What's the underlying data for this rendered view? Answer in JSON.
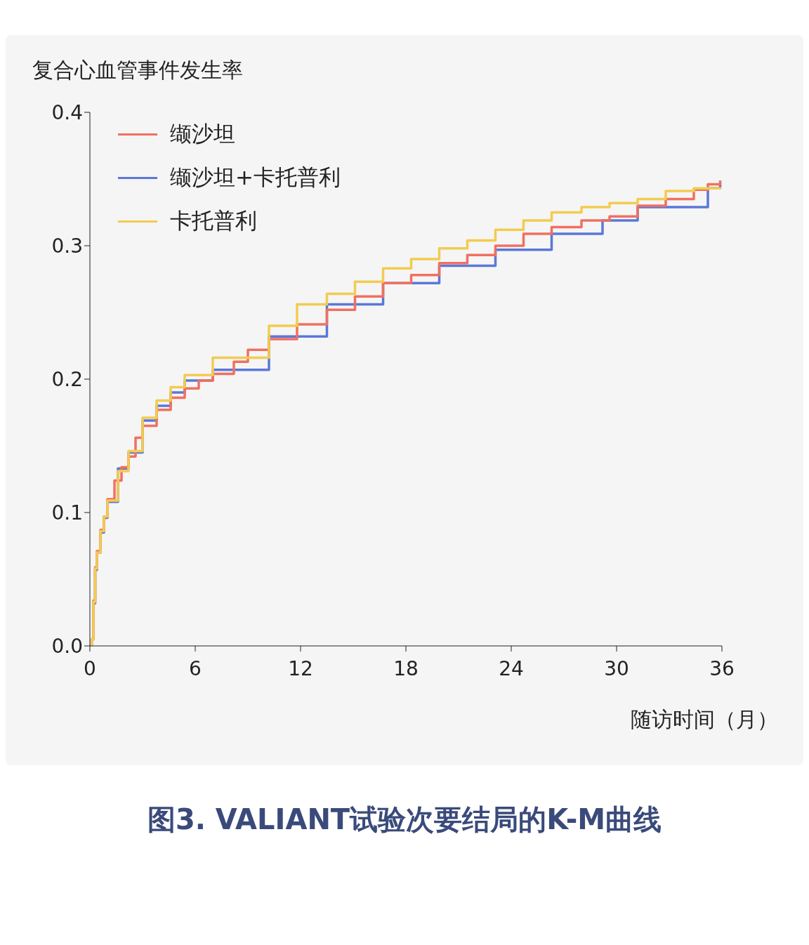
{
  "chart_data": {
    "type": "step",
    "title": "图3. VALIANT试验次要结局的K-M曲线",
    "xlabel": "随访时间（月）",
    "ylabel": "复合心血管事件发生率",
    "xlim": [
      0,
      36
    ],
    "xticks": [
      0,
      6,
      12,
      18,
      24,
      30,
      36
    ],
    "ylim": [
      0,
      0.4
    ],
    "yticks": [
      {
        "value": 0,
        "label": "0.0"
      },
      0.1,
      0.2,
      0.3,
      0.4
    ],
    "legend": "top left",
    "series": [
      {
        "name": "缬沙坦",
        "color": "#f07060",
        "x": [
          0,
          0.1,
          0.2,
          0.3,
          0.4,
          0.6,
          0.8,
          1.0,
          1.4,
          1.8,
          2.2,
          2.6,
          3.0,
          3.8,
          4.6,
          5.4,
          6.2,
          7.0,
          8.2,
          9.0,
          10.2,
          11.8,
          13.5,
          15.1,
          16.7,
          18.3,
          19.9,
          21.5,
          23.1,
          24.7,
          26.3,
          28.0,
          29.6,
          31.2,
          32.8,
          34.4,
          35.2,
          35.9
        ],
        "values": [
          0,
          0.005,
          0.034,
          0.059,
          0.071,
          0.087,
          0.097,
          0.11,
          0.124,
          0.134,
          0.142,
          0.156,
          0.165,
          0.177,
          0.186,
          0.193,
          0.199,
          0.204,
          0.213,
          0.222,
          0.23,
          0.241,
          0.252,
          0.262,
          0.272,
          0.278,
          0.287,
          0.293,
          0.3,
          0.309,
          0.314,
          0.319,
          0.322,
          0.33,
          0.335,
          0.342,
          0.346,
          0.349
        ]
      },
      {
        "name": "缬沙坦+卡托普利",
        "color": "#5b78d8",
        "x": [
          0,
          0.1,
          0.2,
          0.3,
          0.4,
          0.6,
          0.8,
          1.0,
          1.6,
          2.2,
          3.0,
          3.8,
          4.6,
          5.4,
          7.0,
          10.2,
          13.5,
          16.7,
          19.9,
          23.1,
          26.3,
          29.2,
          31.2,
          35.2,
          35.9
        ],
        "values": [
          0,
          0.005,
          0.032,
          0.057,
          0.07,
          0.085,
          0.096,
          0.108,
          0.133,
          0.145,
          0.169,
          0.18,
          0.19,
          0.199,
          0.207,
          0.232,
          0.256,
          0.272,
          0.285,
          0.297,
          0.309,
          0.319,
          0.329,
          0.343,
          0.347
        ]
      },
      {
        "name": "卡托普利",
        "color": "#f2cc50",
        "x": [
          0,
          0.1,
          0.2,
          0.3,
          0.4,
          0.6,
          0.8,
          1.0,
          1.6,
          2.2,
          3.0,
          3.8,
          4.6,
          5.4,
          7.0,
          10.2,
          11.8,
          13.5,
          15.1,
          16.7,
          18.3,
          19.9,
          21.5,
          23.1,
          24.7,
          26.3,
          28.0,
          29.6,
          31.2,
          32.8,
          34.4,
          35.9
        ],
        "values": [
          0,
          0.005,
          0.033,
          0.058,
          0.07,
          0.086,
          0.097,
          0.109,
          0.131,
          0.146,
          0.171,
          0.184,
          0.194,
          0.203,
          0.216,
          0.24,
          0.256,
          0.264,
          0.273,
          0.283,
          0.29,
          0.298,
          0.304,
          0.312,
          0.319,
          0.325,
          0.329,
          0.332,
          0.335,
          0.341,
          0.343,
          0.344
        ]
      }
    ]
  }
}
